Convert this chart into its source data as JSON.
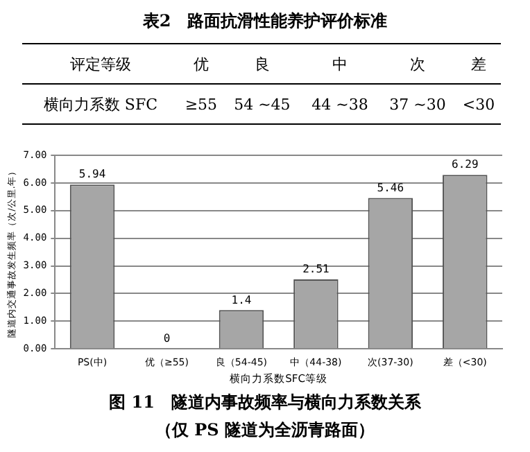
{
  "chart_data": [
    {
      "type": "other",
      "title": "表2　路面抗滑性能养护评价标准",
      "annotations": [
        "评定等级",
        "优",
        "良",
        "中",
        "次",
        "差",
        "横向力系数 SFC",
        "≥55",
        "54 ~45",
        "44 ~38",
        "37 ~30",
        "<30"
      ]
    },
    {
      "type": "bar",
      "title": "图 11　隧道内事故频率与横向力系数关系",
      "subtitle": "（仅 PS 隧道为全沥青路面）",
      "xlabel": "横向力系数SFC等级",
      "ylabel": "隧道内交通事故发生频率（次/公里.年）",
      "categories": [
        "PS(中)",
        "优（≥55)",
        "良（54-45)",
        "中（44-38)",
        "次(37-30)",
        "差（<30)"
      ],
      "values": [
        5.94,
        0,
        1.4,
        2.51,
        5.46,
        6.29
      ],
      "color": "#a6a6a6",
      "ylim": [
        0,
        7
      ],
      "yticks": [
        {
          "value": 0,
          "label": "0.00"
        },
        {
          "value": 1,
          "label": "1.00"
        },
        {
          "value": 2,
          "label": "2.00"
        },
        {
          "value": 3,
          "label": "3.00"
        },
        {
          "value": 4,
          "label": "4.00"
        },
        {
          "value": 5,
          "label": "5.00"
        },
        {
          "value": 6,
          "label": "6.00"
        },
        {
          "value": 7,
          "label": "7.00"
        }
      ],
      "grid": "y",
      "data_labels": true
    }
  ]
}
